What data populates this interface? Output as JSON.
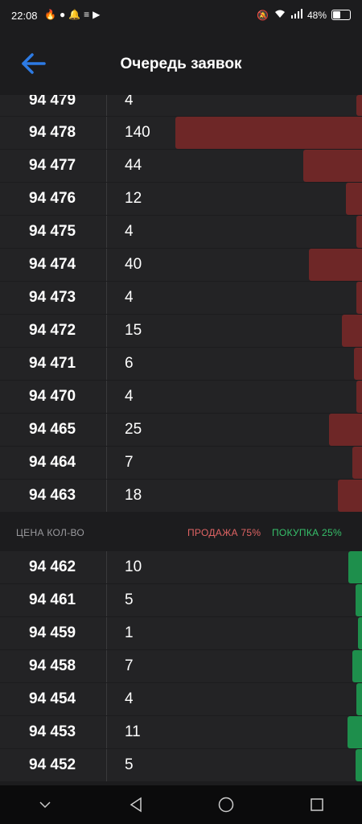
{
  "status_bar": {
    "time": "22:08",
    "battery": "48%"
  },
  "header": {
    "title": "Очередь заявок"
  },
  "asks": [
    {
      "price": "94 479",
      "qty": "4"
    },
    {
      "price": "94 478",
      "qty": "140"
    },
    {
      "price": "94 477",
      "qty": "44"
    },
    {
      "price": "94 476",
      "qty": "12"
    },
    {
      "price": "94 475",
      "qty": "4"
    },
    {
      "price": "94 474",
      "qty": "40"
    },
    {
      "price": "94 473",
      "qty": "4"
    },
    {
      "price": "94 472",
      "qty": "15"
    },
    {
      "price": "94 471",
      "qty": "6"
    },
    {
      "price": "94 470",
      "qty": "4"
    },
    {
      "price": "94 465",
      "qty": "25"
    },
    {
      "price": "94 464",
      "qty": "7"
    },
    {
      "price": "94 463",
      "qty": "18"
    }
  ],
  "divider": {
    "columns": "ЦЕНА КОЛ-ВО",
    "sell": "ПРОДАЖА 75%",
    "buy": "ПОКУПКА 25%"
  },
  "bids": [
    {
      "price": "94 462",
      "qty": "10"
    },
    {
      "price": "94 461",
      "qty": "5"
    },
    {
      "price": "94 459",
      "qty": "1"
    },
    {
      "price": "94 458",
      "qty": "7"
    },
    {
      "price": "94 454",
      "qty": "4"
    },
    {
      "price": "94 453",
      "qty": "11"
    },
    {
      "price": "94 452",
      "qty": "5"
    }
  ],
  "colors": {
    "sell_bar": "#6e2727",
    "buy_bar": "#1e8f4c",
    "accent": "#2d7be5"
  }
}
